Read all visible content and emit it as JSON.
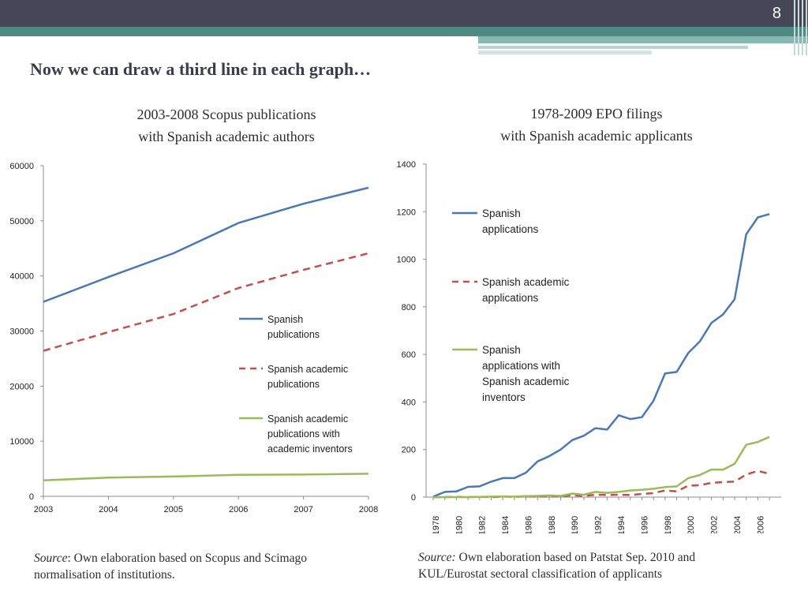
{
  "slide": {
    "page_number": "8",
    "title": "Now we can draw a third line in each graph…"
  },
  "colors": {
    "blue": "#4a78b5",
    "red": "#c0504d",
    "green": "#9bbb59",
    "header": "#454758",
    "teal": "#4d8a84"
  },
  "left_chart": {
    "title_line1": "2003-2008 Scopus publications",
    "title_line2": "with Spanish academic authors",
    "source_label": "Source",
    "source_text": ": Own elaboration based on Scopus and Scimago",
    "source_line2": "normalisation of institutions."
  },
  "right_chart": {
    "title_line1": "1978-2009 EPO filings",
    "title_line2": "with Spanish academic applicants",
    "source_label": "Source:",
    "source_text": " Own elaboration based on Patstat Sep. 2010 and",
    "source_line2": "KUL/Eurostat sectoral classification of applicants"
  },
  "chart_data": [
    {
      "type": "line",
      "title": "2003-2008 Scopus publications with Spanish academic authors",
      "xlabel": "",
      "ylabel": "",
      "categories": [
        "2003",
        "2004",
        "2005",
        "2006",
        "2007",
        "2008"
      ],
      "ylim": [
        0,
        60000
      ],
      "yticks": [
        "0",
        "10000",
        "20000",
        "30000",
        "40000",
        "50000",
        "60000"
      ],
      "grid": false,
      "legend_position": "right",
      "series": [
        {
          "name": "Spanish publications",
          "legend_lines": [
            "Spanish",
            "publications"
          ],
          "style": "solid",
          "color": "#4a78b5",
          "values": [
            35300,
            39800,
            44100,
            49600,
            53100,
            56000
          ]
        },
        {
          "name": "Spanish academic publications",
          "legend_lines": [
            "Spanish academic",
            "publications"
          ],
          "style": "dashed",
          "color": "#c0504d",
          "values": [
            26400,
            29800,
            33100,
            37800,
            41100,
            44100
          ]
        },
        {
          "name": "Spanish academic publications with academic inventors",
          "legend_lines": [
            "Spanish academic",
            "publications with",
            "academic inventors"
          ],
          "style": "solid",
          "color": "#9bbb59",
          "values": [
            2900,
            3400,
            3600,
            3900,
            3950,
            4100
          ]
        }
      ]
    },
    {
      "type": "line",
      "title": "1978-2009 EPO filings with Spanish academic applicants",
      "xlabel": "",
      "ylabel": "",
      "x": [
        1978,
        1979,
        1980,
        1981,
        1982,
        1983,
        1984,
        1985,
        1986,
        1987,
        1988,
        1989,
        1990,
        1991,
        1992,
        1993,
        1994,
        1995,
        1996,
        1997,
        1998,
        1999,
        2000,
        2001,
        2002,
        2003,
        2004,
        2005,
        2006,
        2007
      ],
      "xticks": [
        "1978",
        "1980",
        "1982",
        "1984",
        "1986",
        "1988",
        "1990",
        "1992",
        "1994",
        "1996",
        "1998",
        "2000",
        "2002",
        "2004",
        "2006"
      ],
      "ylim": [
        0,
        1400
      ],
      "yticks": [
        "0",
        "200",
        "400",
        "600",
        "800",
        "1000",
        "1200",
        "1400"
      ],
      "grid": false,
      "legend_position": "top-left",
      "series": [
        {
          "name": "Spanish applications",
          "legend_lines": [
            "Spanish",
            "applications"
          ],
          "style": "solid",
          "color": "#4a78b5",
          "values": [
            2,
            22,
            24,
            43,
            45,
            65,
            80,
            80,
            103,
            150,
            172,
            200,
            240,
            258,
            290,
            284,
            344,
            328,
            336,
            405,
            520,
            526,
            606,
            655,
            733,
            768,
            832,
            1105,
            1176,
            1190
          ]
        },
        {
          "name": "Spanish academic applications",
          "legend_lines": [
            "Spanish academic",
            "applications"
          ],
          "style": "dashed",
          "color": "#c0504d",
          "values": [
            0,
            0,
            1,
            0,
            1,
            0,
            2,
            1,
            3,
            2,
            3,
            3,
            8,
            5,
            10,
            9,
            10,
            9,
            13,
            17,
            28,
            24,
            48,
            50,
            60,
            63,
            65,
            95,
            110,
            98
          ]
        },
        {
          "name": "Spanish applications with Spanish academic inventors",
          "legend_lines": [
            "Spanish",
            "applications with",
            "Spanish academic",
            "inventors"
          ],
          "style": "solid",
          "color": "#9bbb59",
          "values": [
            0,
            0,
            0,
            0,
            1,
            2,
            3,
            2,
            4,
            5,
            7,
            5,
            15,
            10,
            22,
            18,
            22,
            28,
            31,
            35,
            42,
            45,
            80,
            93,
            116,
            115,
            140,
            220,
            232,
            253
          ]
        }
      ]
    }
  ]
}
